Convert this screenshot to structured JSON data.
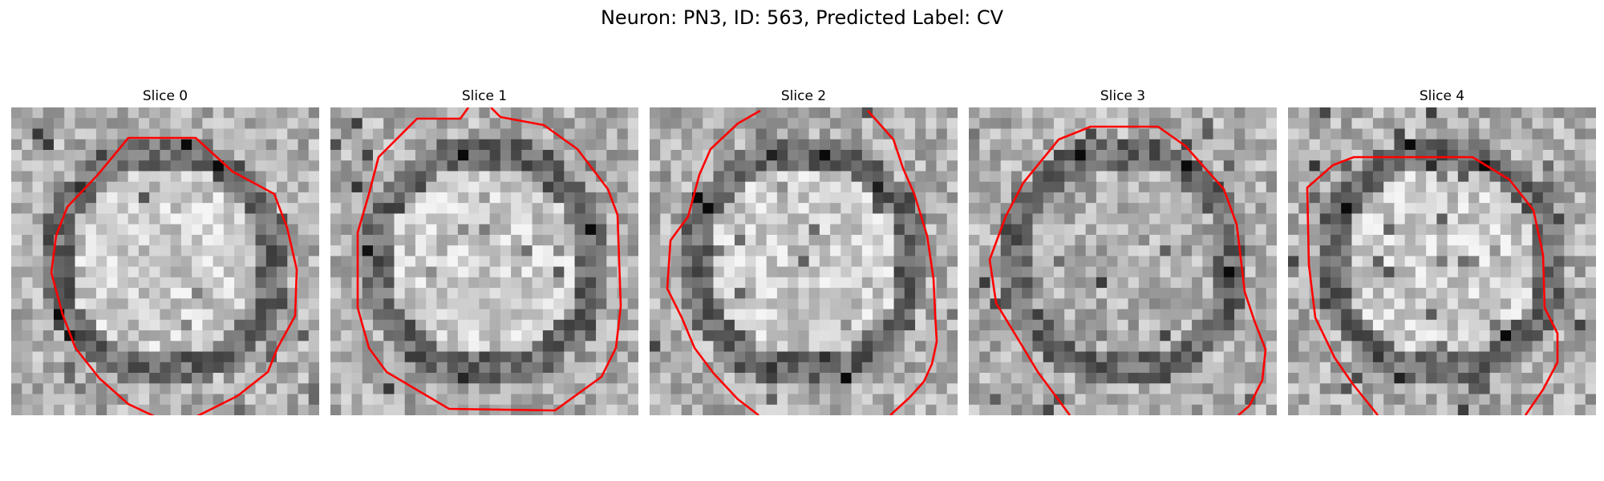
{
  "figure": {
    "title": "Neuron: PN3, ID: 563, Predicted Label: CV"
  },
  "panels": [
    {
      "title": "Slice 0",
      "seed": 11,
      "center_tone": "light",
      "dark_ring": true,
      "outline_color": "#ff0000"
    },
    {
      "title": "Slice 1",
      "seed": 23,
      "center_tone": "light",
      "dark_ring": true,
      "outline_color": "#ff0000"
    },
    {
      "title": "Slice 2",
      "seed": 37,
      "center_tone": "light",
      "dark_ring": true,
      "outline_color": "#ff0000"
    },
    {
      "title": "Slice 3",
      "seed": 51,
      "center_tone": "medium",
      "dark_ring": true,
      "outline_color": "#ff0000"
    },
    {
      "title": "Slice 4",
      "seed": 67,
      "center_tone": "light",
      "dark_ring": true,
      "outline_color": "#ff0000"
    }
  ],
  "colormap": "gray"
}
